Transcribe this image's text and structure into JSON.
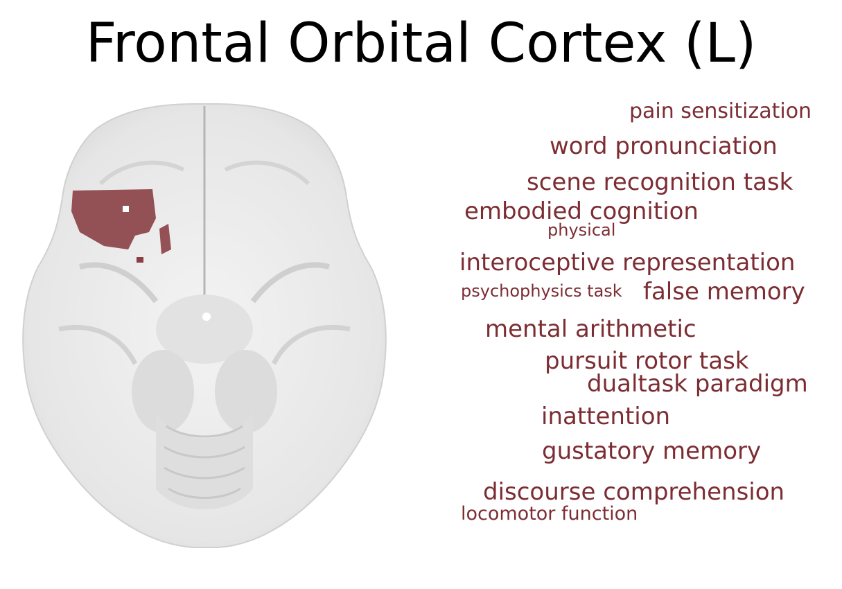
{
  "title": "Frontal Orbital Cortex (L)",
  "colors": {
    "term": "#7c2d33",
    "highlight": "#8a3f45",
    "brain": "#ececec"
  },
  "terms": [
    "pain sensitization",
    "word pronunciation",
    "scene recognition task",
    "embodied cognition",
    "physical",
    "interoceptive representation",
    "psychophysics task",
    "false memory",
    "mental arithmetic",
    "pursuit rotor task",
    "dualtask paradigm",
    "inattention",
    "gustatory memory",
    "discourse comprehension",
    "locomotor function"
  ]
}
